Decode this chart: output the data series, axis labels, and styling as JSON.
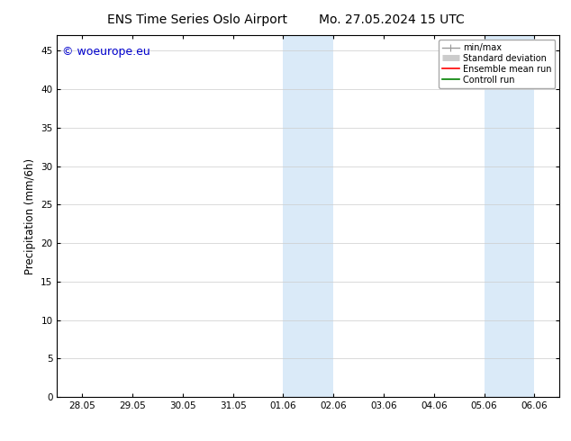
{
  "title_left": "ENS Time Series Oslo Airport",
  "title_right": "Mo. 27.05.2024 15 UTC",
  "ylabel": "Precipitation (mm/6h)",
  "ylim": [
    0,
    47
  ],
  "yticks": [
    0,
    5,
    10,
    15,
    20,
    25,
    30,
    35,
    40,
    45
  ],
  "xtick_labels": [
    "28.05",
    "29.05",
    "30.05",
    "31.05",
    "01.06",
    "02.06",
    "03.06",
    "04.06",
    "05.06",
    "06.06"
  ],
  "xtick_positions": [
    0,
    1,
    2,
    3,
    4,
    5,
    6,
    7,
    8,
    9
  ],
  "xlim": [
    -0.5,
    9.5
  ],
  "shaded_bands": [
    {
      "x_start": 4.0,
      "x_end": 4.5,
      "color": "#daeaf8"
    },
    {
      "x_start": 4.5,
      "x_end": 5.0,
      "color": "#daeaf8"
    },
    {
      "x_start": 8.0,
      "x_end": 8.5,
      "color": "#daeaf8"
    },
    {
      "x_start": 8.5,
      "x_end": 9.0,
      "color": "#daeaf8"
    }
  ],
  "watermark_text": "© woeurope.eu",
  "watermark_color": "#0000cc",
  "legend_entries": [
    {
      "label": "min/max",
      "color": "#999999",
      "lw": 1.0
    },
    {
      "label": "Standard deviation",
      "color": "#cccccc",
      "lw": 5
    },
    {
      "label": "Ensemble mean run",
      "color": "#ff0000",
      "lw": 1.2
    },
    {
      "label": "Controll run",
      "color": "#008000",
      "lw": 1.2
    }
  ],
  "background_color": "#ffffff",
  "tick_font_size": 7.5,
  "title_font_size": 10,
  "legend_font_size": 7.0
}
